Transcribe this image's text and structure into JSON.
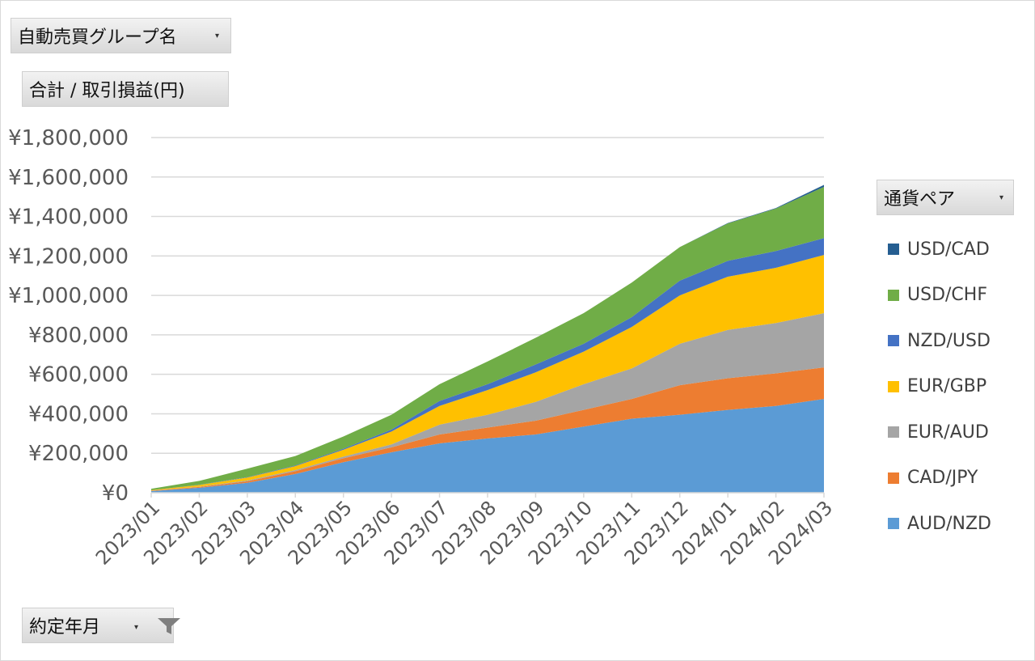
{
  "filters": {
    "group_field": "自動売買グループ名",
    "value_field": "合計 / 取引損益(円)",
    "series_field": "通貨ペア",
    "date_field": "約定年月"
  },
  "icons": {
    "dropdown": "chevron-down-icon",
    "filter": "filter-icon"
  },
  "chart_data": {
    "type": "area",
    "stacked": true,
    "title": "",
    "xlabel": "",
    "ylabel": "",
    "ylim": [
      0,
      1800000
    ],
    "ytick_values": [
      0,
      200000,
      400000,
      600000,
      800000,
      1000000,
      1200000,
      1400000,
      1600000,
      1800000
    ],
    "ytick_labels": [
      "¥0",
      "¥200,000",
      "¥400,000",
      "¥600,000",
      "¥800,000",
      "¥1,000,000",
      "¥1,200,000",
      "¥1,400,000",
      "¥1,600,000",
      "¥1,800,000"
    ],
    "grid": true,
    "legend_position": "right",
    "categories": [
      "2023/01",
      "2023/02",
      "2023/03",
      "2023/04",
      "2023/05",
      "2023/06",
      "2023/07",
      "2023/08",
      "2023/09",
      "2023/10",
      "2023/11",
      "2023/12",
      "2024/01",
      "2024/02",
      "2024/03"
    ],
    "series": [
      {
        "name": "AUD/NZD",
        "color": "#5b9bd5",
        "values": [
          8000,
          25000,
          50000,
          95000,
          155000,
          205000,
          250000,
          275000,
          295000,
          335000,
          375000,
          395000,
          420000,
          440000,
          475000
        ]
      },
      {
        "name": "CAD/JPY",
        "color": "#ed7d31",
        "values": [
          2000,
          4000,
          8000,
          14000,
          20000,
          25000,
          45000,
          55000,
          70000,
          85000,
          100000,
          150000,
          160000,
          165000,
          160000
        ]
      },
      {
        "name": "EUR/AUD",
        "color": "#a5a5a5",
        "values": [
          1000,
          2000,
          4000,
          6000,
          8000,
          15000,
          50000,
          65000,
          95000,
          130000,
          155000,
          210000,
          245000,
          255000,
          275000
        ]
      },
      {
        "name": "EUR/GBP",
        "color": "#ffc000",
        "values": [
          2000,
          8000,
          15000,
          20000,
          35000,
          65000,
          95000,
          125000,
          150000,
          165000,
          210000,
          245000,
          270000,
          280000,
          295000
        ]
      },
      {
        "name": "NZD/USD",
        "color": "#4472c4",
        "values": [
          0,
          1000,
          2000,
          3000,
          5000,
          10000,
          25000,
          30000,
          40000,
          40000,
          50000,
          75000,
          80000,
          85000,
          85000
        ]
      },
      {
        "name": "USD/CHF",
        "color": "#70ad47",
        "values": [
          7000,
          20000,
          43000,
          48000,
          62000,
          75000,
          85000,
          115000,
          135000,
          155000,
          175000,
          170000,
          190000,
          215000,
          260000
        ]
      },
      {
        "name": "USD/CAD",
        "color": "#255e91",
        "values": [
          0,
          0,
          0,
          0,
          0,
          0,
          0,
          0,
          0,
          0,
          0,
          0,
          2000,
          3000,
          10000
        ]
      }
    ]
  }
}
